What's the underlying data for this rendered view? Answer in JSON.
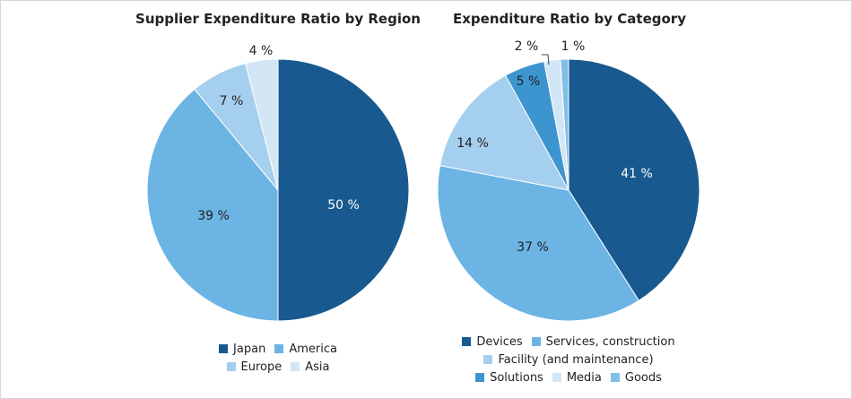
{
  "chart_data": [
    {
      "type": "pie",
      "title": "Supplier Expenditure Ratio by Region",
      "slices": [
        {
          "label": "Japan",
          "value": 50,
          "text": "50 %",
          "color": "#185a8f",
          "text_color": "#ffffff"
        },
        {
          "label": "America",
          "value": 39,
          "text": "39 %",
          "color": "#6cb4e4",
          "text_color": "#222222"
        },
        {
          "label": "Europe",
          "value": 7,
          "text": "7 %",
          "color": "#a5cfee",
          "text_color": "#222222"
        },
        {
          "label": "Asia",
          "value": 4,
          "text": "4 %",
          "color": "#d2e6f5",
          "text_color": "#222222"
        }
      ],
      "legend_rows": [
        [
          "Japan",
          "America"
        ],
        [
          "Europe",
          "Asia"
        ]
      ],
      "legend_position": "bottom"
    },
    {
      "type": "pie",
      "title": "Expenditure Ratio by Category",
      "slices": [
        {
          "label": "Devices",
          "value": 41,
          "text": "41 %",
          "color": "#185a8f",
          "text_color": "#ffffff"
        },
        {
          "label": "Services, construction",
          "value": 37,
          "text": "37 %",
          "color": "#6cb4e4",
          "text_color": "#222222"
        },
        {
          "label": "Facility (and maintenance)",
          "value": 14,
          "text": "14 %",
          "color": "#a5cfee",
          "text_color": "#222222"
        },
        {
          "label": "Solutions",
          "value": 5,
          "text": "5 %",
          "color": "#3d95d0",
          "text_color": "#222222"
        },
        {
          "label": "Media",
          "value": 2,
          "text": "2 %",
          "color": "#d2e6f5",
          "text_color": "#222222"
        },
        {
          "label": "Goods",
          "value": 1,
          "text": "1 %",
          "color": "#7fbfe8",
          "text_color": "#222222"
        }
      ],
      "legend_rows": [
        [
          "Devices",
          "Services, construction"
        ],
        [
          "Facility (and maintenance)"
        ],
        [
          "Solutions",
          "Media",
          "Goods"
        ]
      ],
      "legend_position": "bottom"
    }
  ]
}
